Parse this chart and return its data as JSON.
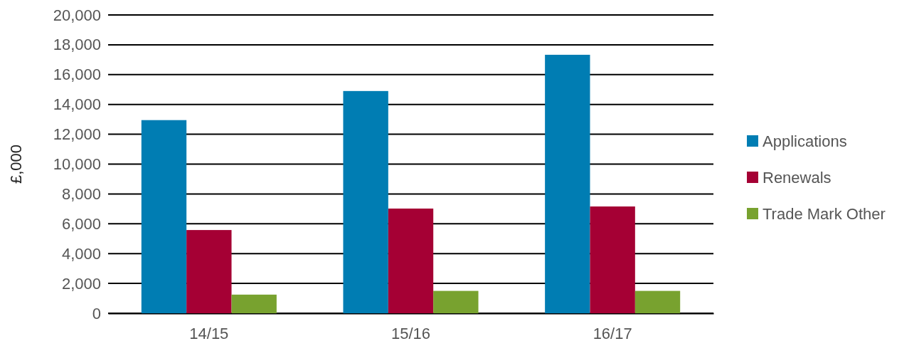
{
  "chart_data": {
    "type": "bar",
    "ylabel": "£,000",
    "categories": [
      "14/15",
      "15/16",
      "16/17"
    ],
    "series": [
      {
        "name": "Applications",
        "color": "#007db3",
        "values": [
          12950,
          14900,
          17330
        ]
      },
      {
        "name": "Renewals",
        "color": "#a50034",
        "values": [
          5580,
          7020,
          7160
        ]
      },
      {
        "name": "Trade Mark Other",
        "color": "#78a22f",
        "values": [
          1250,
          1500,
          1500
        ]
      }
    ],
    "ylim": [
      0,
      20000
    ],
    "yticks": [
      {
        "value": 0,
        "label": "0"
      },
      {
        "value": 2000,
        "label": "2,000"
      },
      {
        "value": 4000,
        "label": "4,000"
      },
      {
        "value": 6000,
        "label": "6,000"
      },
      {
        "value": 8000,
        "label": "8,000"
      },
      {
        "value": 10000,
        "label": "10,000"
      },
      {
        "value": 12000,
        "label": "12,000"
      },
      {
        "value": 14000,
        "label": "14,000"
      },
      {
        "value": 16000,
        "label": "16,000"
      },
      {
        "value": 18000,
        "label": "18,000"
      },
      {
        "value": 20000,
        "label": "20,000"
      }
    ],
    "grid": "y",
    "legend": "right"
  }
}
